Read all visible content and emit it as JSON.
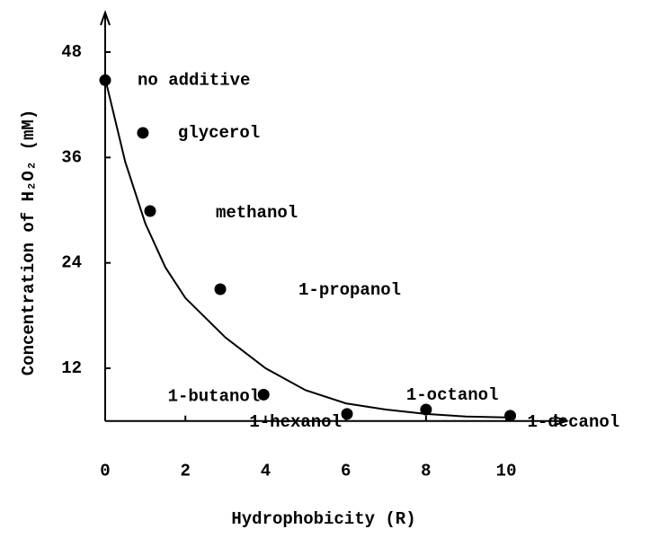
{
  "chart_data": {
    "type": "scatter",
    "xlabel": "Hydrophobicity (R)",
    "ylabel": "Concentration of H₂O₂ (mM)",
    "xlim": [
      0,
      11.5
    ],
    "xticks": [
      0,
      2,
      4,
      6,
      8,
      10
    ],
    "ylim": [
      6,
      52.5
    ],
    "yticks": [
      12,
      24,
      36,
      48
    ],
    "color": "#000000",
    "points": {
      "labels": [
        "no additive",
        "glycerol",
        "methanol",
        "1-propanol",
        "1-butanol",
        "1-hexanol",
        "1-octanol",
        "1-decanol"
      ],
      "x": [
        0,
        0.94,
        1.12,
        2.87,
        3.95,
        6.03,
        8.0,
        10.1
      ],
      "values": [
        44.8,
        38.8,
        29.9,
        21.0,
        9.0,
        6.8,
        7.3,
        6.6
      ]
    },
    "fit": {
      "x": [
        0,
        0.5,
        1,
        1.5,
        2,
        3,
        4,
        5,
        6,
        7,
        8,
        9,
        10
      ],
      "values": [
        45,
        35.5,
        28.5,
        23.5,
        20,
        15.5,
        12,
        9.5,
        8,
        7.3,
        6.8,
        6.5,
        6.4
      ]
    }
  }
}
